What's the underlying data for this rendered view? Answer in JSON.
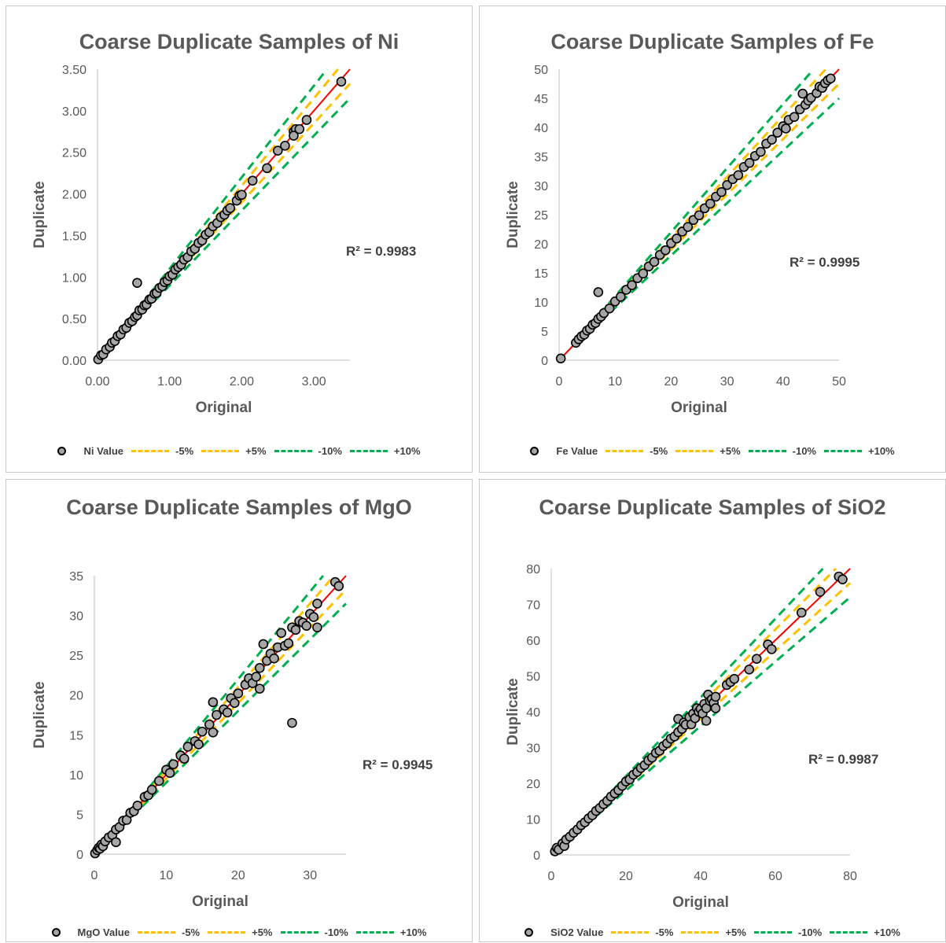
{
  "colors": {
    "points_fill": "#a6a6a6",
    "points_stroke": "#000000",
    "fit_line": "#ff0000",
    "band5": "#ffc000",
    "band10": "#00b050",
    "axis": "#bfbfbf",
    "text": "#595959"
  },
  "chart_data": [
    {
      "type": "scatter",
      "title": "Coarse Duplicate Samples of Ni",
      "xlabel": "Original",
      "ylabel": "Duplicate",
      "xlim": [
        0,
        3.5
      ],
      "ylim": [
        0,
        3.5
      ],
      "xticks": [
        "0.00",
        "1.00",
        "2.00",
        "3.00"
      ],
      "yticks": [
        "0.00",
        "0.50",
        "1.00",
        "1.50",
        "2.00",
        "2.50",
        "3.00",
        "3.50"
      ],
      "r2": "R² = 0.9983",
      "legend": [
        "Ni Value",
        "-5%",
        "+5%",
        "-10%",
        "+10%"
      ],
      "series": [
        {
          "name": "Ni Value",
          "points": [
            [
              0.01,
              0.01
            ],
            [
              0.05,
              0.06
            ],
            [
              0.08,
              0.07
            ],
            [
              0.12,
              0.13
            ],
            [
              0.17,
              0.16
            ],
            [
              0.2,
              0.21
            ],
            [
              0.24,
              0.23
            ],
            [
              0.28,
              0.29
            ],
            [
              0.32,
              0.31
            ],
            [
              0.36,
              0.37
            ],
            [
              0.4,
              0.39
            ],
            [
              0.44,
              0.45
            ],
            [
              0.48,
              0.47
            ],
            [
              0.52,
              0.52
            ],
            [
              0.55,
              0.54
            ],
            [
              0.58,
              0.6
            ],
            [
              0.62,
              0.61
            ],
            [
              0.65,
              0.66
            ],
            [
              0.68,
              0.67
            ],
            [
              0.72,
              0.73
            ],
            [
              0.75,
              0.74
            ],
            [
              0.79,
              0.8
            ],
            [
              0.82,
              0.81
            ],
            [
              0.86,
              0.87
            ],
            [
              0.9,
              0.89
            ],
            [
              0.93,
              0.94
            ],
            [
              0.97,
              0.96
            ],
            [
              1.0,
              1.01
            ],
            [
              1.04,
              1.03
            ],
            [
              1.08,
              1.09
            ],
            [
              1.12,
              1.12
            ],
            [
              1.16,
              1.15
            ],
            [
              1.2,
              1.21
            ],
            [
              1.25,
              1.24
            ],
            [
              1.3,
              1.31
            ],
            [
              1.35,
              1.34
            ],
            [
              1.4,
              1.41
            ],
            [
              1.45,
              1.44
            ],
            [
              1.5,
              1.51
            ],
            [
              1.55,
              1.54
            ],
            [
              1.6,
              1.61
            ],
            [
              1.66,
              1.65
            ],
            [
              1.71,
              1.72
            ],
            [
              1.76,
              1.75
            ],
            [
              1.8,
              1.8
            ],
            [
              1.84,
              1.83
            ],
            [
              1.93,
              1.92
            ],
            [
              1.97,
              1.98
            ],
            [
              2.0,
              1.99
            ],
            [
              2.15,
              2.16
            ],
            [
              2.35,
              2.31
            ],
            [
              2.5,
              2.52
            ],
            [
              2.6,
              2.58
            ],
            [
              2.72,
              2.75
            ],
            [
              2.75,
              2.78
            ],
            [
              2.72,
              2.7
            ],
            [
              2.8,
              2.78
            ],
            [
              2.9,
              2.89
            ],
            [
              3.38,
              3.35
            ],
            [
              0.55,
              0.93
            ]
          ]
        }
      ]
    },
    {
      "type": "scatter",
      "title": "Coarse Duplicate Samples of Fe",
      "xlabel": "Original",
      "ylabel": "Duplicate",
      "xlim": [
        0,
        50
      ],
      "ylim": [
        0,
        50
      ],
      "xticks": [
        "0",
        "10",
        "20",
        "30",
        "40",
        "50"
      ],
      "yticks": [
        "0",
        "5",
        "10",
        "15",
        "20",
        "25",
        "30",
        "35",
        "40",
        "45",
        "50"
      ],
      "r2": "R² = 0.9995",
      "legend": [
        "Fe Value",
        "-5%",
        "+5%",
        "-10%",
        "+10%"
      ],
      "series": [
        {
          "name": "Fe Value",
          "points": [
            [
              0.3,
              0.3
            ],
            [
              3,
              3
            ],
            [
              3.5,
              3.6
            ],
            [
              4,
              4.1
            ],
            [
              4.5,
              4.4
            ],
            [
              5,
              5.1
            ],
            [
              5.5,
              5.4
            ],
            [
              6,
              6.1
            ],
            [
              6.5,
              6.4
            ],
            [
              7,
              7.1
            ],
            [
              7.5,
              7.5
            ],
            [
              8,
              8.1
            ],
            [
              9,
              8.9
            ],
            [
              10,
              10.1
            ],
            [
              11,
              10.9
            ],
            [
              12,
              12.1
            ],
            [
              13,
              12.9
            ],
            [
              14,
              14.1
            ],
            [
              15,
              14.9
            ],
            [
              16,
              16.1
            ],
            [
              17,
              16.9
            ],
            [
              18,
              18.1
            ],
            [
              19,
              18.9
            ],
            [
              20,
              20.1
            ],
            [
              21,
              20.9
            ],
            [
              22,
              22.1
            ],
            [
              23,
              22.9
            ],
            [
              24,
              24.1
            ],
            [
              25,
              24.9
            ],
            [
              26,
              26.1
            ],
            [
              27,
              26.9
            ],
            [
              28,
              28.1
            ],
            [
              29,
              28.9
            ],
            [
              30,
              30.1
            ],
            [
              31,
              31.1
            ],
            [
              32,
              31.8
            ],
            [
              33,
              33.2
            ],
            [
              34,
              33.9
            ],
            [
              35,
              35.1
            ],
            [
              36,
              35.8
            ],
            [
              37,
              37.2
            ],
            [
              38,
              37.9
            ],
            [
              39,
              39.1
            ],
            [
              40,
              40.2
            ],
            [
              40.5,
              39.8
            ],
            [
              41,
              41.3
            ],
            [
              42,
              41.8
            ],
            [
              43,
              43.1
            ],
            [
              43.5,
              45.8
            ],
            [
              44,
              43.9
            ],
            [
              44.5,
              44.6
            ],
            [
              45,
              45.1
            ],
            [
              46,
              45.9
            ],
            [
              46.5,
              47
            ],
            [
              47,
              46.8
            ],
            [
              47.5,
              47.6
            ],
            [
              48,
              48.1
            ],
            [
              48.5,
              48.4
            ],
            [
              7,
              11.7
            ]
          ]
        }
      ]
    },
    {
      "type": "scatter",
      "title": "Coarse Duplicate Samples of MgO",
      "xlabel": "Original",
      "ylabel": "Duplicate",
      "xlim": [
        0,
        35
      ],
      "ylim": [
        0,
        35
      ],
      "xticks": [
        "0",
        "10",
        "20",
        "30"
      ],
      "yticks": [
        "0",
        "5",
        "10",
        "15",
        "20",
        "25",
        "30",
        "35"
      ],
      "r2": "R² = 0.9945",
      "legend": [
        "MgO Value",
        "-5%",
        "+5%",
        "-10%",
        "+10%"
      ],
      "series": [
        {
          "name": "MgO Value",
          "points": [
            [
              0.1,
              0.1
            ],
            [
              0.4,
              0.5
            ],
            [
              0.6,
              0.8
            ],
            [
              0.8,
              0.7
            ],
            [
              1,
              1.2
            ],
            [
              1.2,
              1.0
            ],
            [
              1.5,
              1.6
            ],
            [
              2,
              2.1
            ],
            [
              2.5,
              2.4
            ],
            [
              3,
              1.5
            ],
            [
              3,
              3.1
            ],
            [
              3.5,
              3.4
            ],
            [
              4,
              4.2
            ],
            [
              4.5,
              4.3
            ],
            [
              5,
              5.2
            ],
            [
              5.5,
              5.4
            ],
            [
              6,
              6.1
            ],
            [
              7,
              7.2
            ],
            [
              7.5,
              7.4
            ],
            [
              8,
              8.1
            ],
            [
              9,
              9.2
            ],
            [
              10,
              10.6
            ],
            [
              10.5,
              10.2
            ],
            [
              11,
              11.3
            ],
            [
              12,
              12.4
            ],
            [
              12.5,
              12
            ],
            [
              13,
              13.5
            ],
            [
              14,
              14.2
            ],
            [
              14.5,
              13.8
            ],
            [
              15,
              15.4
            ],
            [
              16,
              16.3
            ],
            [
              16.5,
              15.3
            ],
            [
              16.5,
              19.1
            ],
            [
              17,
              17.5
            ],
            [
              18,
              18.2
            ],
            [
              18.5,
              17.8
            ],
            [
              19,
              19.6
            ],
            [
              19.5,
              19
            ],
            [
              20,
              20.2
            ],
            [
              21,
              21.3
            ],
            [
              21.5,
              22.1
            ],
            [
              22,
              21.5
            ],
            [
              22.5,
              22.3
            ],
            [
              23,
              20.8
            ],
            [
              23,
              23.4
            ],
            [
              23.5,
              26.4
            ],
            [
              24,
              24.3
            ],
            [
              24.5,
              25.2
            ],
            [
              25,
              24.6
            ],
            [
              25.5,
              26
            ],
            [
              26,
              27.8
            ],
            [
              26.5,
              26.2
            ],
            [
              27,
              26.5
            ],
            [
              27.5,
              28.5
            ],
            [
              28,
              28.2
            ],
            [
              28.5,
              29.3
            ],
            [
              29,
              29.1
            ],
            [
              29.5,
              28.7
            ],
            [
              30,
              30.2
            ],
            [
              30.5,
              29.8
            ],
            [
              31,
              31.5
            ],
            [
              31,
              28.5
            ],
            [
              33.5,
              34.2
            ],
            [
              34,
              33.7
            ],
            [
              27.5,
              16.5
            ]
          ]
        }
      ]
    },
    {
      "type": "scatter",
      "title": "Coarse Duplicate Samples of SiO2",
      "xlabel": "Original",
      "ylabel": "Duplicate",
      "xlim": [
        0,
        80
      ],
      "ylim": [
        0,
        80
      ],
      "xticks": [
        "0",
        "20",
        "40",
        "60",
        "80"
      ],
      "yticks": [
        "0",
        "10",
        "20",
        "30",
        "40",
        "50",
        "60",
        "70",
        "80"
      ],
      "r2": "R² = 0.9987",
      "legend": [
        "SiO2 Value",
        "-5%",
        "+5%",
        "-10%",
        "+10%"
      ],
      "series": [
        {
          "name": "SiO2 Value",
          "points": [
            [
              1,
              1
            ],
            [
              1.5,
              2
            ],
            [
              2,
              1.5
            ],
            [
              3,
              3.2
            ],
            [
              3.5,
              2.5
            ],
            [
              4,
              4.3
            ],
            [
              5,
              5.1
            ],
            [
              6,
              6.2
            ],
            [
              7,
              7.1
            ],
            [
              8,
              8.3
            ],
            [
              9,
              9.1
            ],
            [
              10,
              10.2
            ],
            [
              11,
              11.1
            ],
            [
              12,
              12.3
            ],
            [
              13,
              13.1
            ],
            [
              14,
              14.2
            ],
            [
              15,
              15.1
            ],
            [
              16,
              16.3
            ],
            [
              17,
              17.2
            ],
            [
              18,
              18.1
            ],
            [
              19,
              19.3
            ],
            [
              20,
              20.5
            ],
            [
              21,
              21.1
            ],
            [
              22,
              22.4
            ],
            [
              23,
              23.2
            ],
            [
              24,
              24.3
            ],
            [
              25,
              25.1
            ],
            [
              26,
              26.4
            ],
            [
              27,
              27.2
            ],
            [
              28,
              28.5
            ],
            [
              29,
              29.1
            ],
            [
              30,
              30.4
            ],
            [
              31,
              31.2
            ],
            [
              32,
              32.5
            ],
            [
              33,
              33.1
            ],
            [
              34,
              38
            ],
            [
              34,
              34.3
            ],
            [
              35,
              35.2
            ],
            [
              35.5,
              37
            ],
            [
              36,
              36.4
            ],
            [
              37,
              38.5
            ],
            [
              37.5,
              36.5
            ],
            [
              38,
              39.5
            ],
            [
              38.5,
              38.2
            ],
            [
              39,
              41
            ],
            [
              39.5,
              40
            ],
            [
              40,
              40.8
            ],
            [
              40.5,
              39.5
            ],
            [
              41,
              42.2
            ],
            [
              41.5,
              41
            ],
            [
              42,
              44.8
            ],
            [
              42.5,
              43
            ],
            [
              43,
              43.5
            ],
            [
              43.5,
              42.5
            ],
            [
              44,
              44.2
            ],
            [
              41.5,
              37.5
            ],
            [
              44,
              41
            ],
            [
              47,
              47.5
            ],
            [
              48,
              48.3
            ],
            [
              49,
              49.2
            ],
            [
              53,
              51.8
            ],
            [
              55,
              54.8
            ],
            [
              58,
              58.8
            ],
            [
              59,
              57.5
            ],
            [
              67,
              67.7
            ],
            [
              72,
              73.5
            ],
            [
              77,
              77.8
            ],
            [
              78,
              77
            ]
          ]
        }
      ]
    }
  ]
}
